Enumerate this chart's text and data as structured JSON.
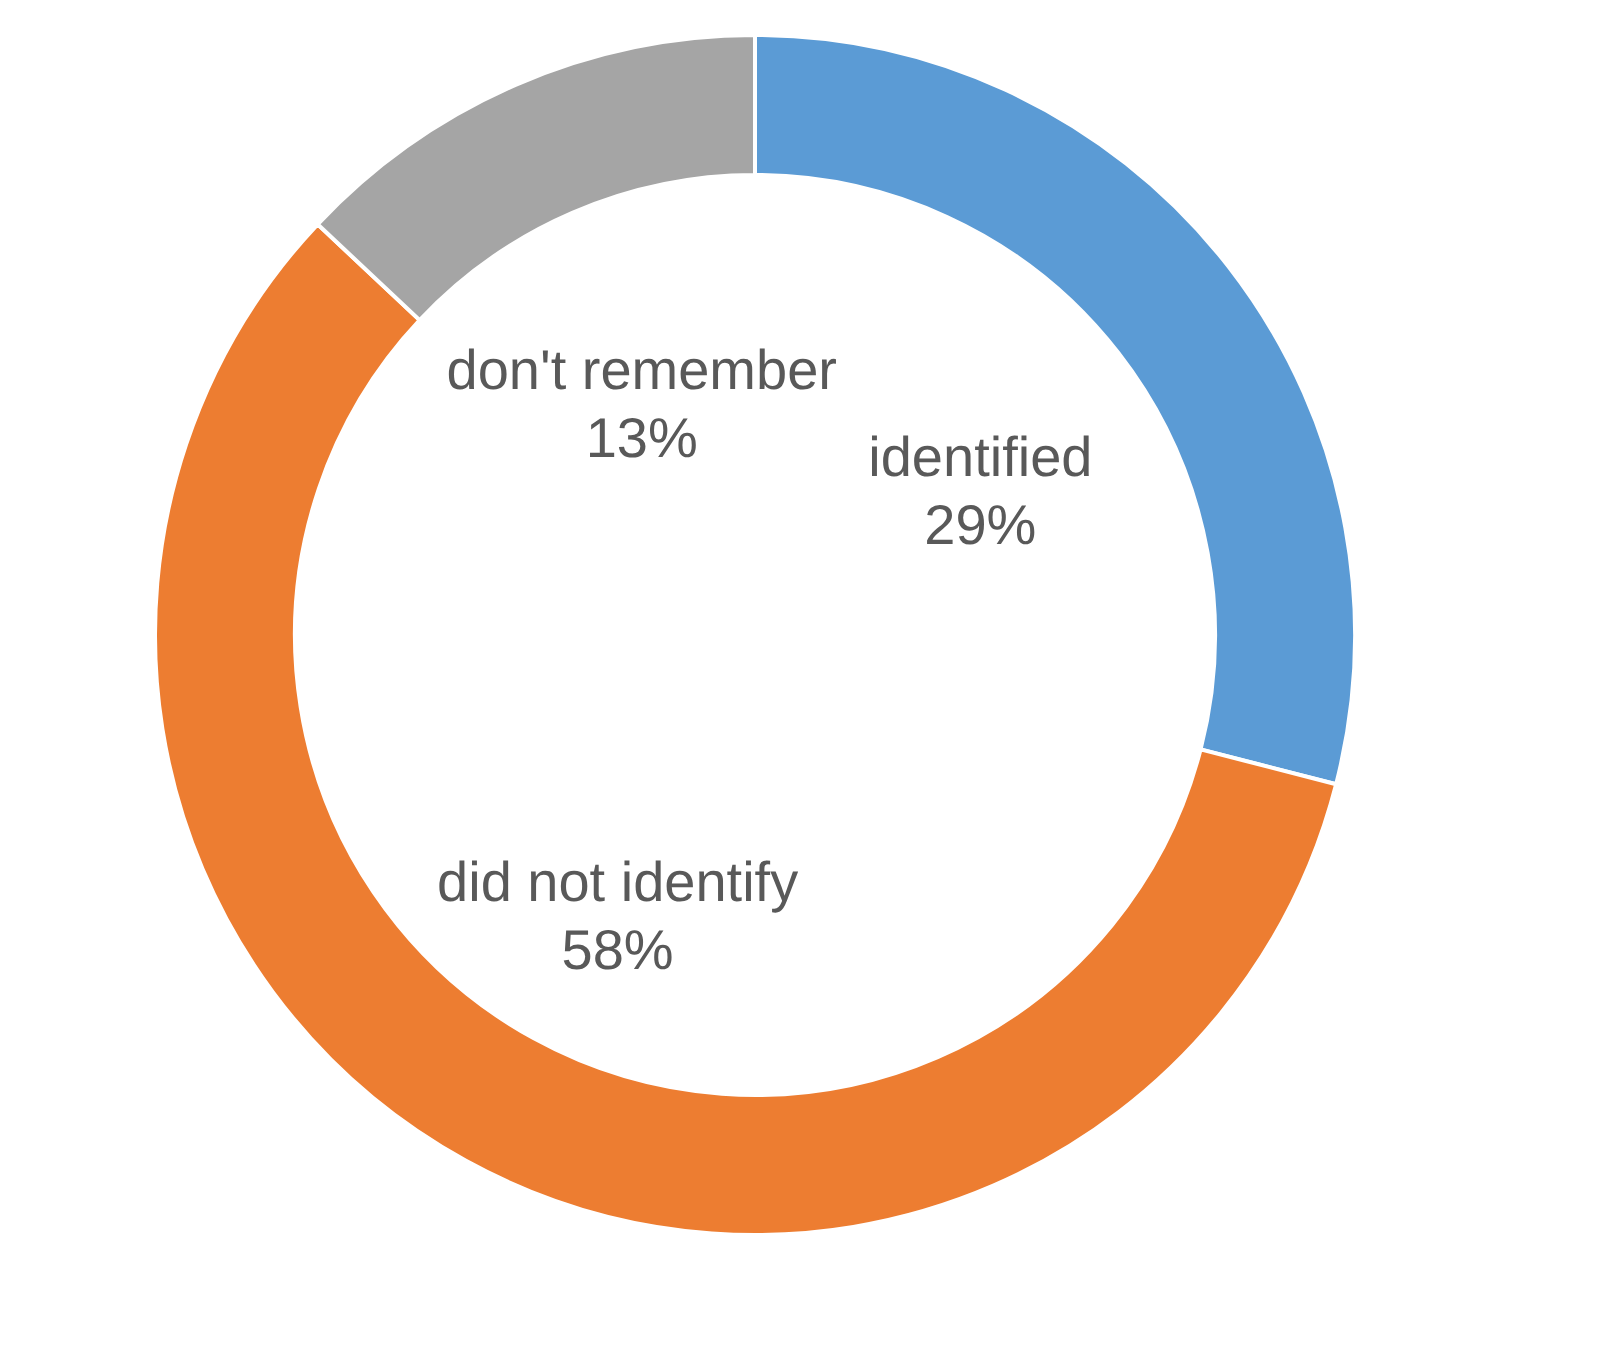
{
  "chart_data": {
    "type": "donut",
    "categories": [
      "identified",
      "did not identify",
      "don't remember"
    ],
    "values": [
      29,
      58,
      13
    ],
    "colors": [
      "#5b9bd5",
      "#ed7d31",
      "#a5a5a5"
    ],
    "value_labels": [
      "29%",
      "58%",
      "13%"
    ],
    "legend": false
  }
}
